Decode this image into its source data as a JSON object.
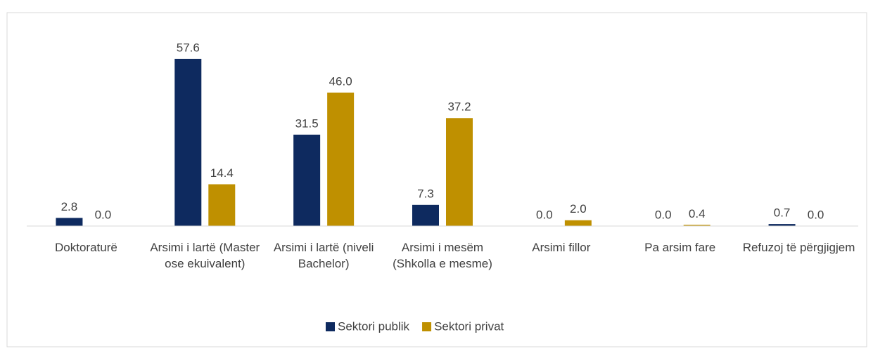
{
  "chart_data": {
    "type": "bar",
    "categories": [
      "Doktoraturë",
      "Arsimi i lartë (Master ose ekuivalent)",
      "Arsimi i lartë (niveli Bachelor)",
      "Arsimi i mesëm (Shkolla e mesme)",
      "Arsimi fillor",
      "Pa arsim fare",
      "Refuzoj të përgjigjem"
    ],
    "series": [
      {
        "name": "Sektori publik",
        "color": "#0e2a5f",
        "values": [
          2.8,
          57.6,
          31.5,
          7.3,
          0.0,
          0.0,
          0.7
        ],
        "value_labels": [
          "2.8",
          "57.6",
          "31.5",
          "7.3",
          "0.0",
          "0.0",
          "0.7"
        ]
      },
      {
        "name": "Sektori privat",
        "color": "#bf9000",
        "values": [
          0.0,
          14.4,
          46.0,
          37.2,
          2.0,
          0.4,
          0.0
        ],
        "value_labels": [
          "0.0",
          "14.4",
          "46.0",
          "37.2",
          "2.0",
          "0.4",
          "0.0"
        ]
      }
    ],
    "ylim": [
      0,
      60
    ],
    "legend": "bottom"
  }
}
